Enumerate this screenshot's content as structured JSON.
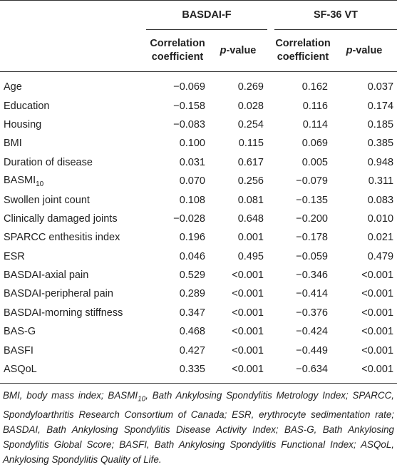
{
  "table": {
    "groups": [
      "BASDAI-F",
      "SF-36 VT"
    ],
    "subheaders": [
      {
        "text": "Correlation coefficient"
      },
      {
        "italic": "p",
        "text": "-value"
      },
      {
        "text": "Correlation coefficient"
      },
      {
        "italic": "p",
        "text": "-value"
      }
    ],
    "rows": [
      [
        {
          "text": "Age"
        },
        "−0.069",
        "0.269",
        "0.162",
        "0.037"
      ],
      [
        {
          "text": "Education"
        },
        "−0.158",
        "0.028",
        "0.116",
        "0.174"
      ],
      [
        {
          "text": "Housing"
        },
        "−0.083",
        "0.254",
        "0.114",
        "0.185"
      ],
      [
        {
          "text": "BMI"
        },
        "0.100",
        "0.115",
        "0.069",
        "0.385"
      ],
      [
        {
          "text": "Duration of disease"
        },
        "0.031",
        "0.617",
        "0.005",
        "0.948"
      ],
      [
        {
          "text": "BASMI",
          "sub": "10"
        },
        "0.070",
        "0.256",
        "−0.079",
        "0.311"
      ],
      [
        {
          "text": "Swollen joint count"
        },
        "0.108",
        "0.081",
        "−0.135",
        "0.083"
      ],
      [
        {
          "text": "Clinically damaged joints"
        },
        "−0.028",
        "0.648",
        "−0.200",
        "0.010"
      ],
      [
        {
          "text": "SPARCC enthesitis index"
        },
        "0.196",
        "0.001",
        "−0.178",
        "0.021"
      ],
      [
        {
          "text": "ESR"
        },
        "0.046",
        "0.495",
        "−0.059",
        "0.479"
      ],
      [
        {
          "text": "BASDAI-axial pain"
        },
        "0.529",
        "<0.001",
        "−0.346",
        "<0.001"
      ],
      [
        {
          "text": "BASDAI-peripheral pain"
        },
        "0.289",
        "<0.001",
        "−0.414",
        "<0.001"
      ],
      [
        {
          "text": "BASDAI-morning stiffness"
        },
        "0.347",
        "<0.001",
        "−0.376",
        "<0.001"
      ],
      [
        {
          "text": "BAS-G"
        },
        "0.468",
        "<0.001",
        "−0.424",
        "<0.001"
      ],
      [
        {
          "text": "BASFI"
        },
        "0.427",
        "<0.001",
        "−0.449",
        "<0.001"
      ],
      [
        {
          "text": "ASQoL"
        },
        "0.335",
        "<0.001",
        "−0.634",
        "<0.001"
      ]
    ]
  },
  "footnote": [
    "BMI, body mass index; BASMI",
    "10",
    ", Bath Ankylosing Spondylitis Metrology Index; SPARCC, Spondyloarthritis Research Consortium of Canada; ESR, erythrocyte sedimentation rate; BASDAI, Bath Ankylosing Spondylitis Disease Activity Index; BAS-G, Bath Ankylosing Spondylitis Global Score; BASFI, Bath Ankylosing Spondylitis Functional Index; ASQoL, Ankylosing Spondylitis Quality of Life."
  ]
}
